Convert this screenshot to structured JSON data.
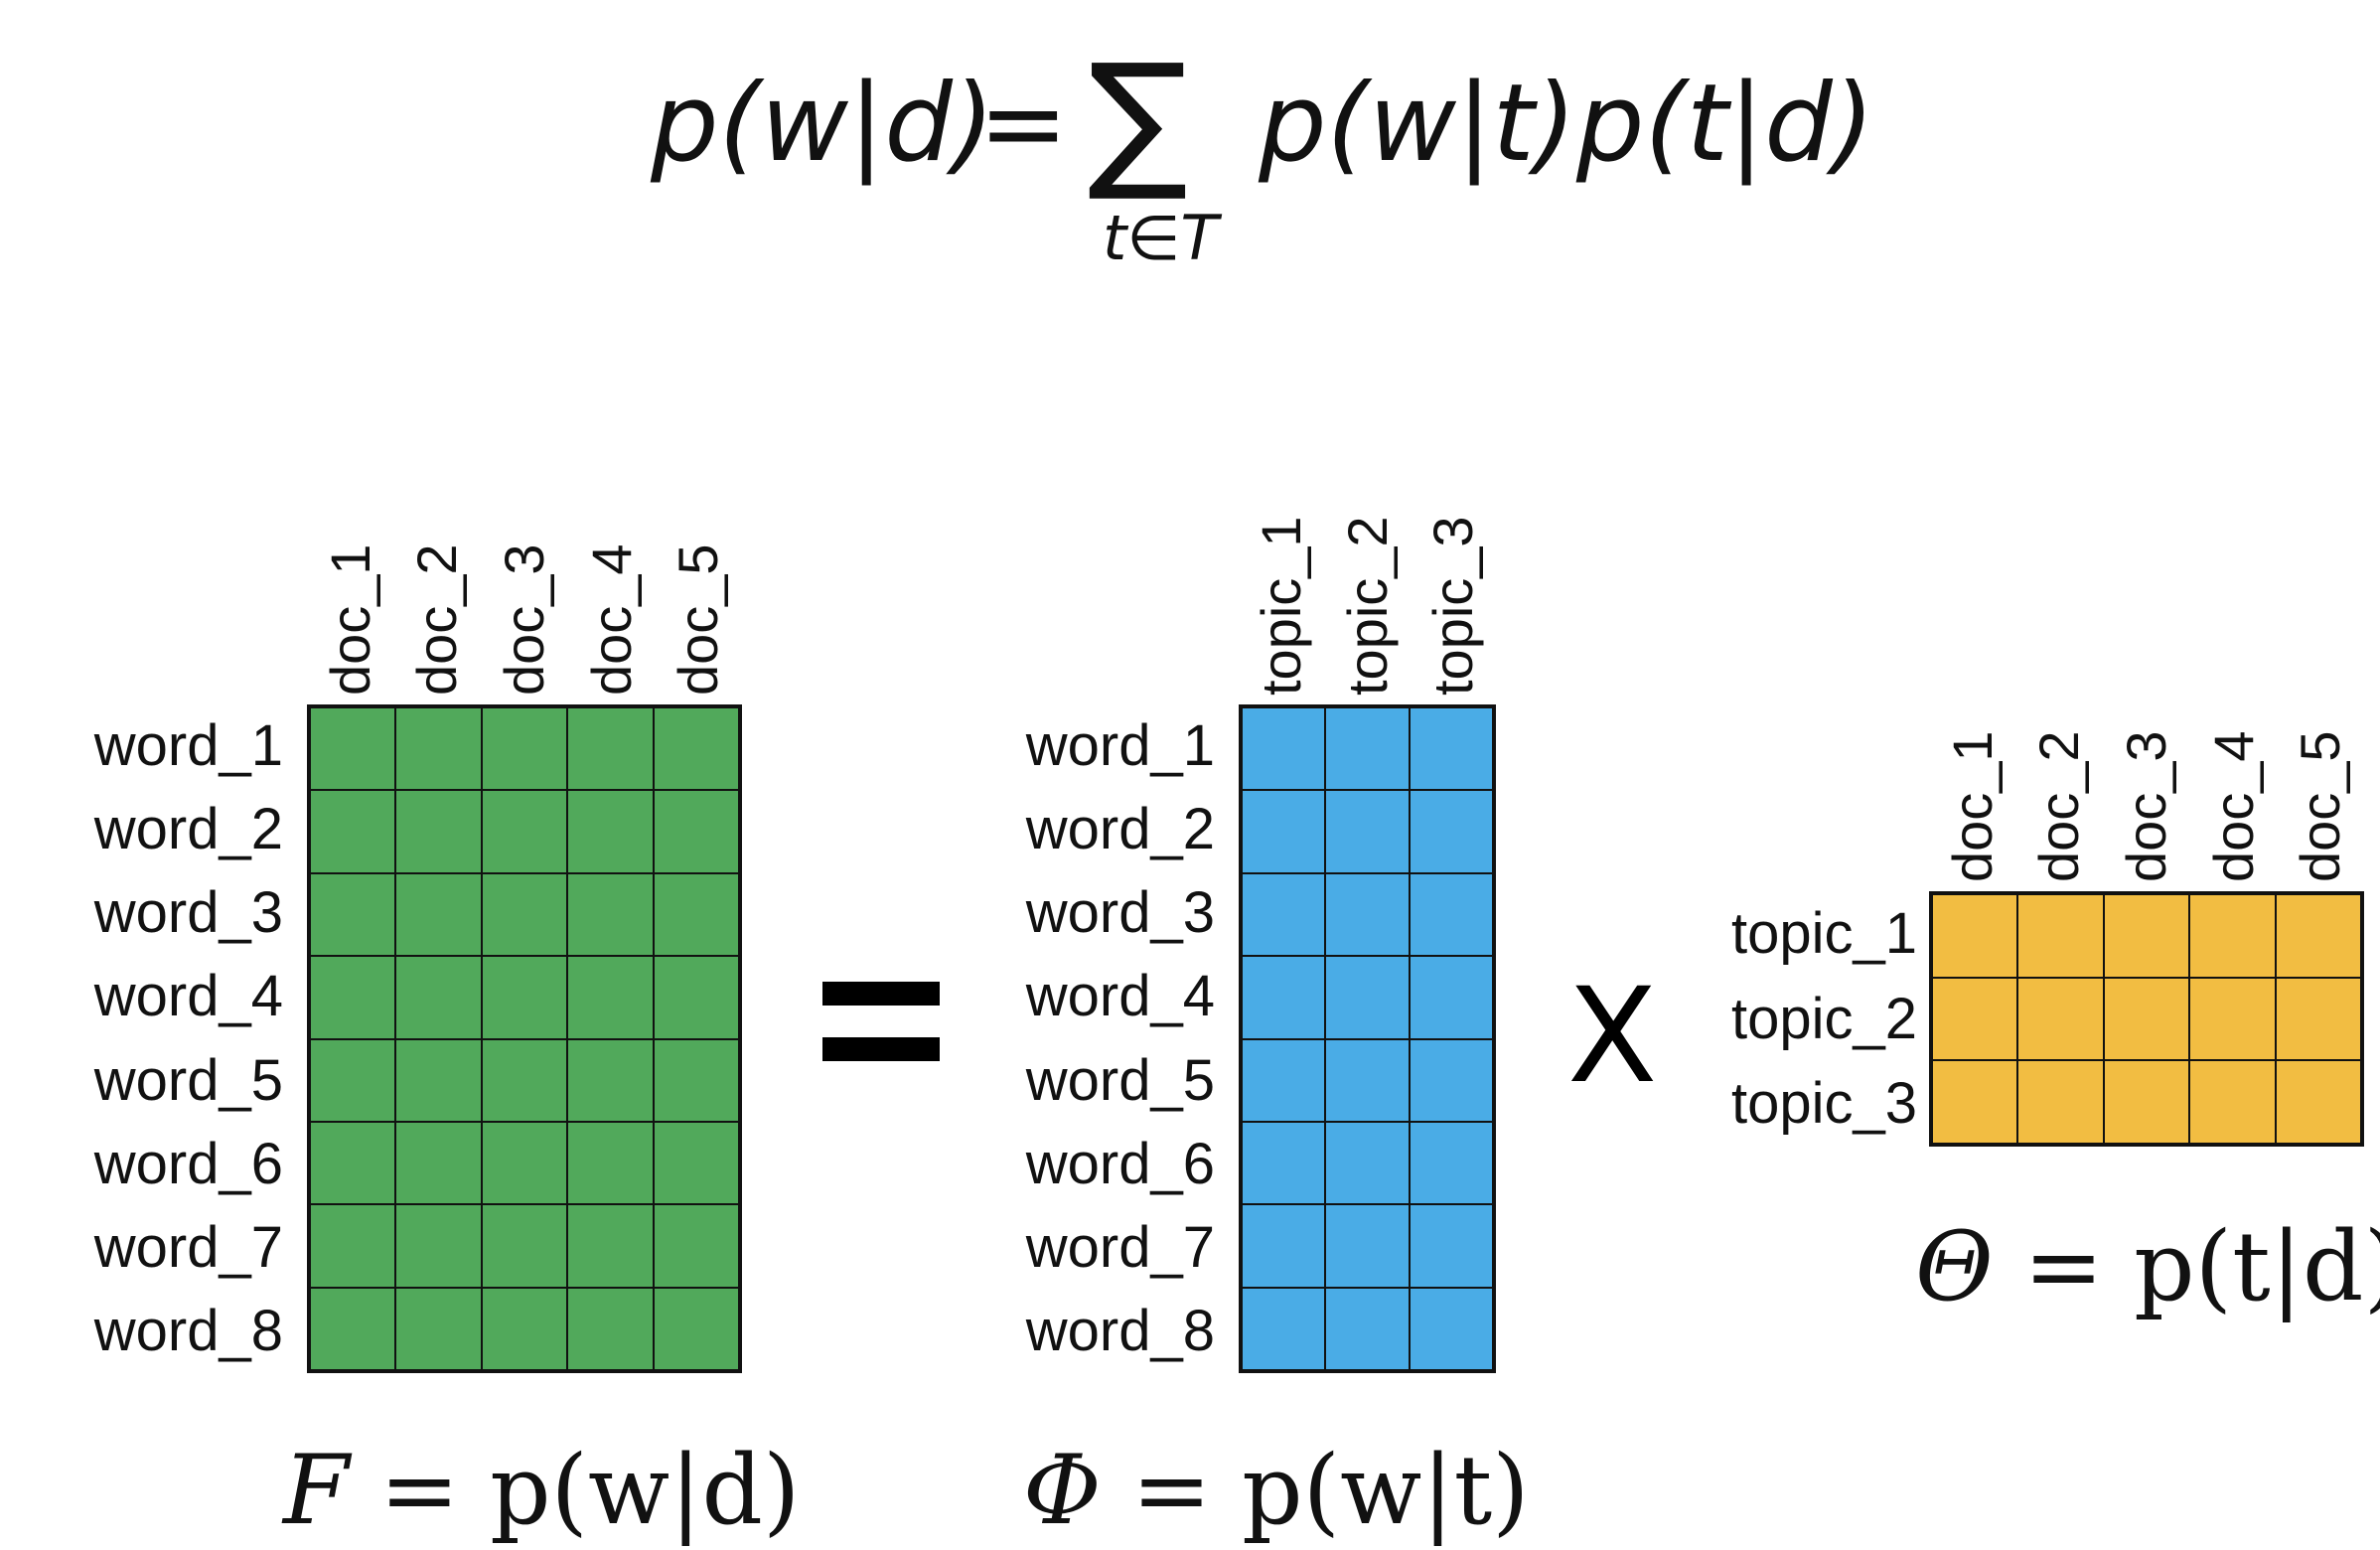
{
  "top_equation": {
    "lhs": "p(w|d)",
    "equals": "=",
    "sum_symbol": "∑",
    "sum_subscript": "t∈T",
    "rhs": "p(w|t)p(t|d)"
  },
  "matrix_f": {
    "columns": [
      "doc_1",
      "doc_2",
      "doc_3",
      "doc_4",
      "doc_5"
    ],
    "rows": [
      "word_1",
      "word_2",
      "word_3",
      "word_4",
      "word_5",
      "word_6",
      "word_7",
      "word_8"
    ],
    "color": "#51a95b",
    "caption_var": "F",
    "caption_rest": " = p(w|d)"
  },
  "operator_equals": "=",
  "matrix_phi": {
    "columns": [
      "topic_1",
      "topic_2",
      "topic_3"
    ],
    "rows": [
      "word_1",
      "word_2",
      "word_3",
      "word_4",
      "word_5",
      "word_6",
      "word_7",
      "word_8"
    ],
    "color": "#4aace6",
    "caption_var": "Φ",
    "caption_rest": " = p(w|t)"
  },
  "operator_times": "X",
  "matrix_theta": {
    "columns": [
      "doc_1",
      "doc_2",
      "doc_3",
      "doc_4",
      "doc_5"
    ],
    "rows": [
      "topic_1",
      "topic_2",
      "topic_3"
    ],
    "color": "#f2bd42",
    "caption_var": "Θ",
    "caption_rest": " = p(t|d)"
  }
}
